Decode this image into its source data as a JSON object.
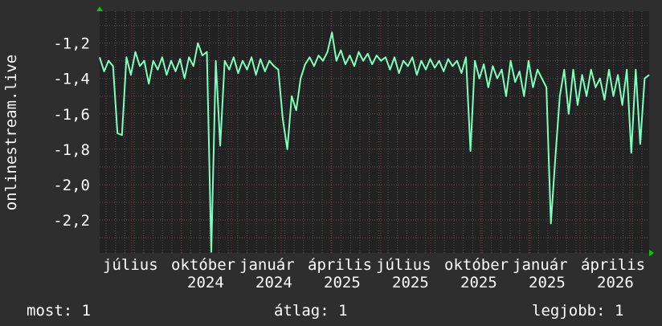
{
  "chart_data": {
    "type": "line",
    "ylabel": "onlinestream.live",
    "ylim": [
      -2.386,
      -1.02
    ],
    "yticks": [
      "-1,2",
      "-1,4",
      "-1,6",
      "-1,8",
      "-2,0",
      "-2,2"
    ],
    "ytick_values": [
      -1.2,
      -1.4,
      -1.6,
      -1.8,
      -2.0,
      -2.2
    ],
    "xtick_labels": [
      "július",
      "október",
      "2024",
      "január",
      "2024",
      "április",
      "2025",
      "július",
      "2025",
      "október",
      "2025",
      "január",
      "2025",
      "április",
      "2026"
    ],
    "grid": true,
    "line_color": "#7fffbf",
    "background": "#222222",
    "values": [
      -1.28,
      -1.36,
      -1.3,
      -1.33,
      -1.71,
      -1.72,
      -1.28,
      -1.38,
      -1.25,
      -1.33,
      -1.3,
      -1.43,
      -1.3,
      -1.35,
      -1.28,
      -1.38,
      -1.3,
      -1.36,
      -1.29,
      -1.4,
      -1.28,
      -1.33,
      -1.2,
      -1.27,
      -1.25,
      -2.38,
      -1.3,
      -1.78,
      -1.3,
      -1.35,
      -1.28,
      -1.37,
      -1.3,
      -1.35,
      -1.28,
      -1.38,
      -1.29,
      -1.36,
      -1.3,
      -1.33,
      -1.35,
      -1.63,
      -1.8,
      -1.5,
      -1.58,
      -1.4,
      -1.32,
      -1.28,
      -1.33,
      -1.27,
      -1.3,
      -1.25,
      -1.14,
      -1.3,
      -1.24,
      -1.32,
      -1.27,
      -1.33,
      -1.25,
      -1.3,
      -1.26,
      -1.32,
      -1.27,
      -1.3,
      -1.28,
      -1.35,
      -1.28,
      -1.37,
      -1.3,
      -1.33,
      -1.28,
      -1.38,
      -1.3,
      -1.35,
      -1.29,
      -1.34,
      -1.3,
      -1.36,
      -1.29,
      -1.33,
      -1.3,
      -1.37,
      -1.28,
      -1.81,
      -1.3,
      -1.4,
      -1.32,
      -1.45,
      -1.33,
      -1.4,
      -1.35,
      -1.5,
      -1.3,
      -1.42,
      -1.36,
      -1.5,
      -1.3,
      -1.45,
      -1.35,
      -1.4,
      -1.45,
      -2.22,
      -1.85,
      -1.5,
      -1.35,
      -1.6,
      -1.35,
      -1.55,
      -1.38,
      -1.5,
      -1.35,
      -1.45,
      -1.4,
      -1.52,
      -1.35,
      -1.5,
      -1.38,
      -1.55,
      -1.35,
      -1.82,
      -1.35,
      -1.77,
      -1.4,
      -1.38
    ]
  },
  "legend": {
    "now": "most: 1",
    "avg": "átlag: 1",
    "max": "legjobb: 1"
  }
}
